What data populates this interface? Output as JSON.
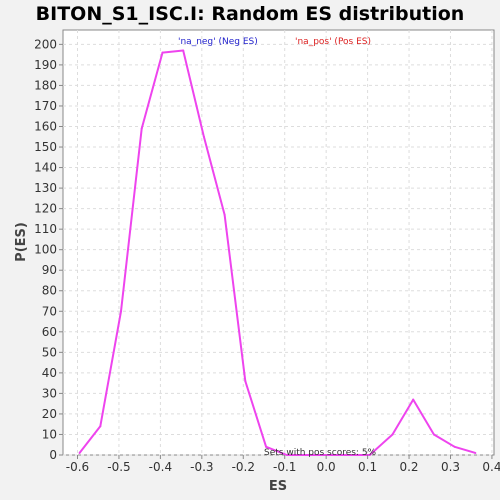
{
  "chart_data": {
    "type": "line",
    "title": "BITON_S1_ISC.I: Random ES distribution",
    "xlabel": "ES",
    "ylabel": "P(ES)",
    "xlim": [
      -0.635,
      0.405
    ],
    "ylim": [
      0,
      207
    ],
    "x_ticks": [
      "-0.6",
      "-0.5",
      "-0.4",
      "-0.3",
      "-0.2",
      "-0.1",
      "0.0",
      "0.1",
      "0.2",
      "0.3",
      "0.4"
    ],
    "y_ticks": [
      "0",
      "10",
      "20",
      "30",
      "40",
      "50",
      "60",
      "70",
      "80",
      "90",
      "100",
      "110",
      "120",
      "130",
      "140",
      "150",
      "160",
      "170",
      "180",
      "190",
      "200"
    ],
    "grid": true,
    "legend": [
      {
        "label": "'na_neg' (Neg ES)",
        "color": "#2222cc"
      },
      {
        "label": "'na_pos' (Pos ES)",
        "color": "#dd2222"
      }
    ],
    "annotation": "Sets with pos scores: 5%",
    "series": [
      {
        "color": "#ee44ee",
        "x": [
          -0.595,
          -0.545,
          -0.495,
          -0.445,
          -0.395,
          -0.345,
          -0.295,
          -0.245,
          -0.195,
          -0.145,
          -0.095,
          -0.045,
          0.005,
          0.055,
          0.105,
          0.16,
          0.21,
          0.26,
          0.31,
          0.36
        ],
        "y": [
          1,
          14,
          70,
          159,
          196,
          197,
          155,
          117,
          36,
          4,
          0,
          0,
          0,
          0,
          0,
          10,
          27,
          10,
          4,
          1
        ]
      }
    ]
  }
}
